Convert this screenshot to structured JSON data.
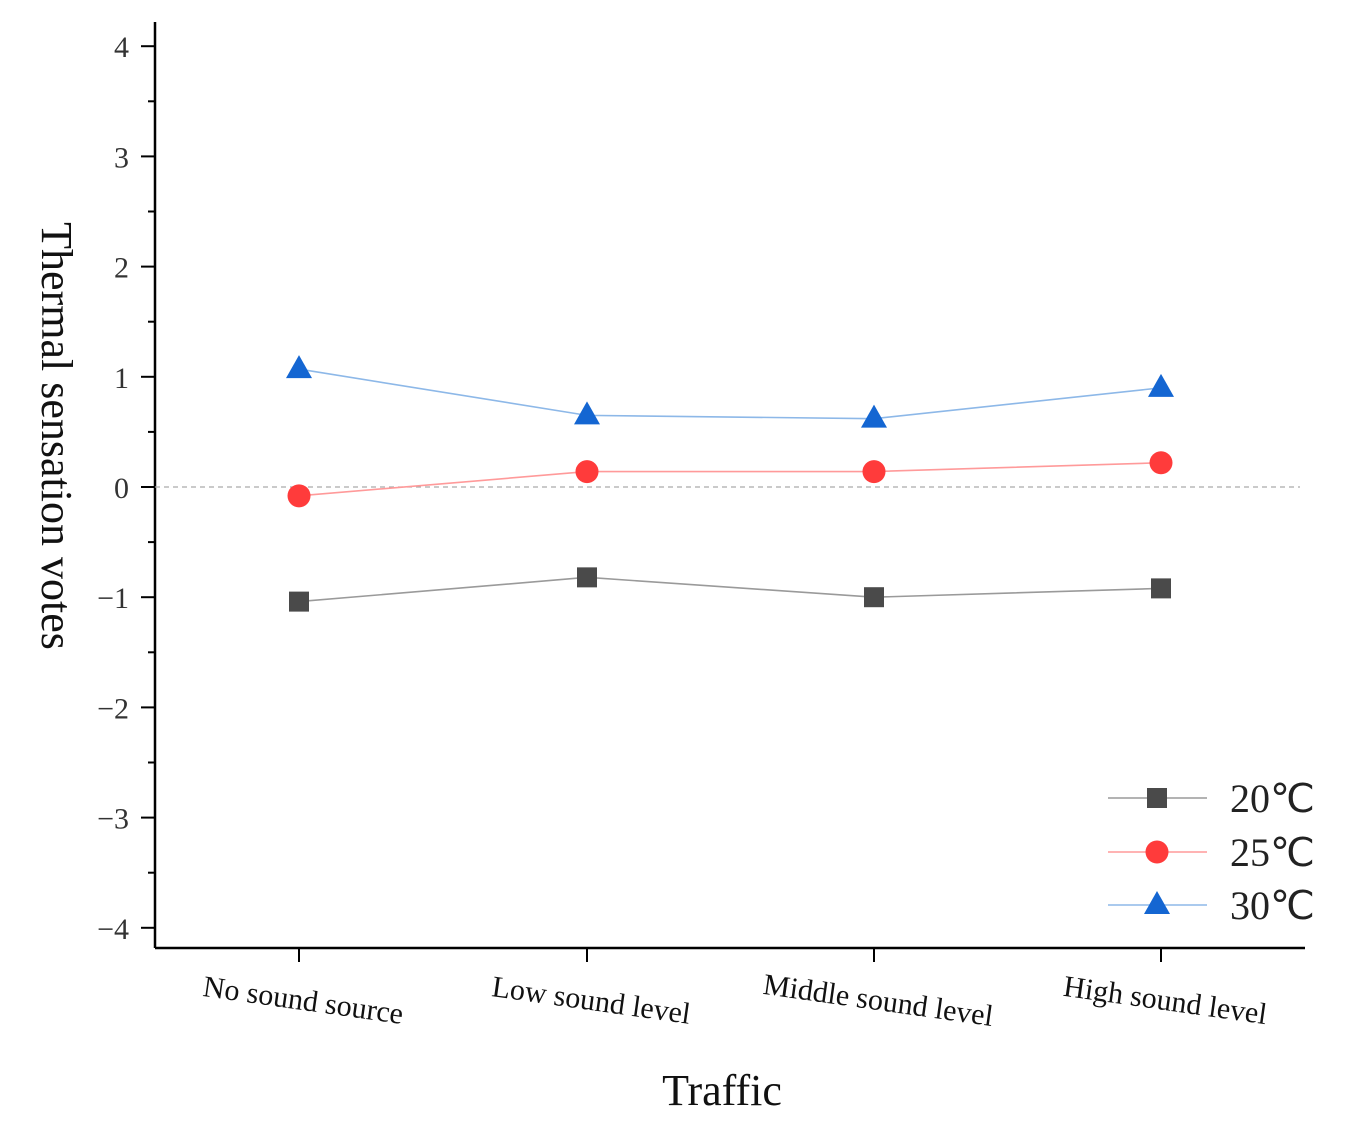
{
  "chart_data": {
    "type": "line",
    "title": "",
    "xlabel": "Traffic",
    "ylabel": "Thermal sensation votes",
    "categories": [
      "No sound source",
      "Low sound level",
      "Middle sound level",
      "High sound level"
    ],
    "ylim": [
      -4.2,
      4.2
    ],
    "yticks": [
      -4,
      -3,
      -2,
      -1,
      0,
      1,
      2,
      3,
      4
    ],
    "ytick_labels": [
      "−4",
      "−3",
      "−2",
      "−1",
      "0",
      "1",
      "2",
      "3",
      "4"
    ],
    "reference_line": 0,
    "legend_position": "bottom-right",
    "series": [
      {
        "name": "20℃",
        "marker": "square",
        "color": "#4a4a4a",
        "line_color": "#9a9a9a",
        "values": [
          -1.04,
          -0.82,
          -1.0,
          -0.92
        ]
      },
      {
        "name": "25℃",
        "marker": "circle",
        "color": "#ff3b3b",
        "line_color": "#ff9a9a",
        "values": [
          -0.08,
          0.14,
          0.14,
          0.22
        ]
      },
      {
        "name": "30℃",
        "marker": "triangle",
        "color": "#1466d2",
        "line_color": "#8db8e8",
        "values": [
          1.07,
          0.65,
          0.62,
          0.9
        ]
      }
    ]
  }
}
